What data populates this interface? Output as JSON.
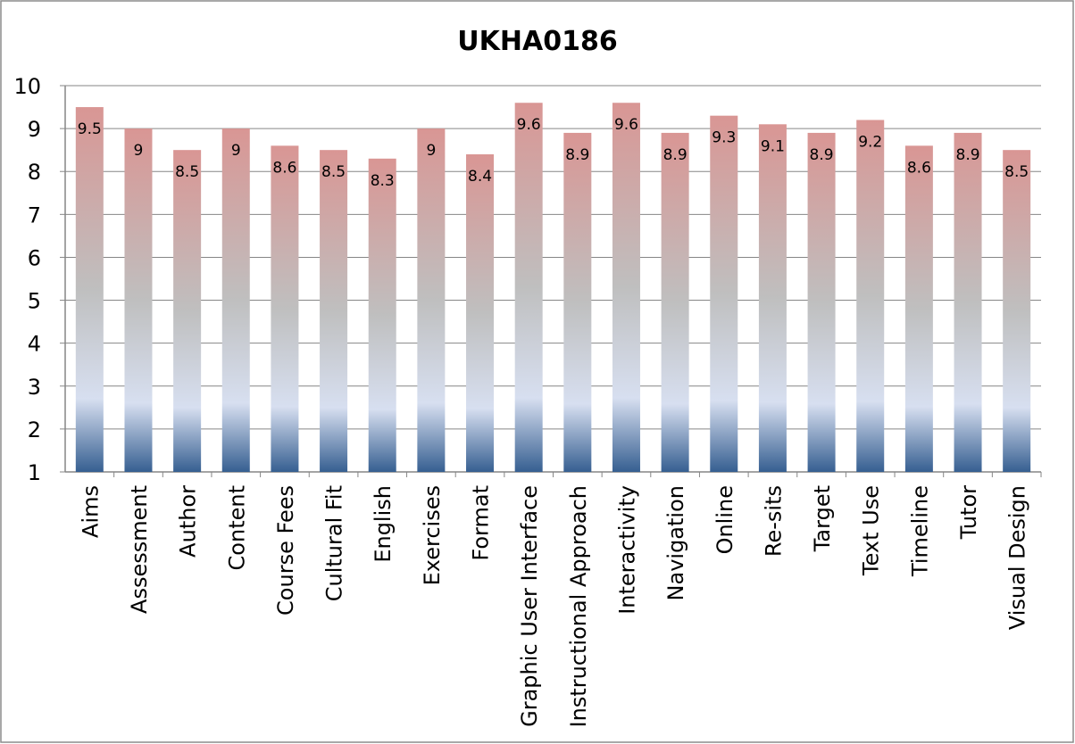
{
  "chart_data": {
    "type": "bar",
    "title": "UKHA0186",
    "xlabel": "",
    "ylabel": "",
    "ylim": [
      1,
      10
    ],
    "yticks": [
      1,
      2,
      3,
      4,
      5,
      6,
      7,
      8,
      9,
      10
    ],
    "grid": true,
    "legend": "none",
    "categories": [
      "Aims",
      "Assessment",
      "Author",
      "Content",
      "Course Fees",
      "Cultural Fit",
      "English",
      "Exercises",
      "Format",
      "Graphic User Interface",
      "Instructional Approach",
      "Interactivity",
      "Navigation",
      "Online",
      "Re-sits",
      "Target",
      "Text Use",
      "Timeline",
      "Tutor",
      "Visual Design"
    ],
    "values": [
      9.5,
      9,
      8.5,
      9,
      8.6,
      8.5,
      8.3,
      9,
      8.4,
      9.6,
      8.9,
      9.6,
      8.9,
      9.3,
      9.1,
      8.9,
      9.2,
      8.6,
      8.9,
      8.5
    ],
    "colors": {
      "top": "#d99694",
      "middle": "#bfbfbf",
      "light": "#d7dff0",
      "bottom": "#365f91"
    }
  }
}
